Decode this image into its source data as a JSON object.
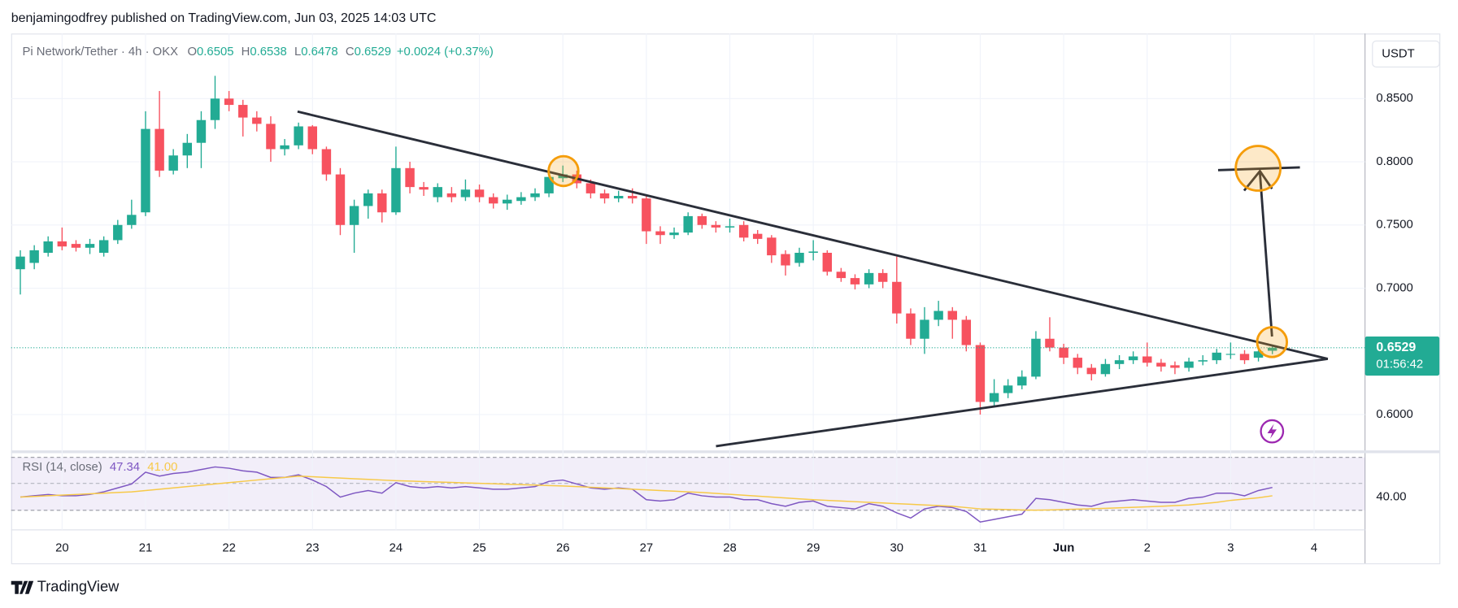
{
  "header": {
    "publisher": "benjamingodfrey published on TradingView.com, Jun 03, 2025 14:03 UTC"
  },
  "footer": {
    "brand": "TradingView"
  },
  "chart_data": [
    {
      "type": "candlestick",
      "title": "Pi Network/Tether · 4h · OKX",
      "legend": [
        {
          "label": "O",
          "value": "0.6505"
        },
        {
          "label": "H",
          "value": "0.6538"
        },
        {
          "label": "L",
          "value": "0.6478"
        },
        {
          "label": "C",
          "value": "0.6529"
        }
      ],
      "change": "+0.0024 (+0.37%)",
      "currency": "USDT",
      "up_color": "#22ab94",
      "down_color": "#f7525f",
      "x": [
        19.5,
        19.667,
        19.833,
        20,
        20.167,
        20.333,
        20.5,
        20.667,
        20.833,
        21,
        21.167,
        21.333,
        21.5,
        21.667,
        21.833,
        22,
        22.167,
        22.333,
        22.5,
        22.667,
        22.833,
        23,
        23.167,
        23.333,
        23.5,
        23.667,
        23.833,
        24,
        24.167,
        24.333,
        24.5,
        24.667,
        24.833,
        25,
        25.167,
        25.333,
        25.5,
        25.667,
        25.833,
        26,
        26.167,
        26.333,
        26.5,
        26.667,
        26.833,
        27,
        27.167,
        27.333,
        27.5,
        27.667,
        27.833,
        28,
        28.167,
        28.333,
        28.5,
        28.667,
        28.833,
        29,
        29.167,
        29.333,
        29.5,
        29.667,
        29.833,
        30,
        30.167,
        30.333,
        30.5,
        30.667,
        30.833,
        31,
        31.167,
        31.333,
        31.5,
        31.667,
        31.833,
        32,
        32.167,
        32.333,
        32.5,
        32.667,
        32.833,
        33,
        33.167,
        33.333,
        33.5,
        33.667,
        33.833,
        34,
        34.167,
        34.333,
        34.5
      ],
      "open": [
        0.715,
        0.72,
        0.728,
        0.737,
        0.735,
        0.732,
        0.728,
        0.738,
        0.75,
        0.76,
        0.826,
        0.793,
        0.805,
        0.815,
        0.833,
        0.85,
        0.845,
        0.835,
        0.83,
        0.81,
        0.813,
        0.828,
        0.81,
        0.79,
        0.75,
        0.765,
        0.775,
        0.76,
        0.795,
        0.78,
        0.772,
        0.775,
        0.772,
        0.778,
        0.772,
        0.767,
        0.769,
        0.772,
        0.775,
        0.787,
        0.79,
        0.783,
        0.775,
        0.771,
        0.773,
        0.771,
        0.745,
        0.742,
        0.744,
        0.757,
        0.75,
        0.748,
        0.75,
        0.743,
        0.74,
        0.727,
        0.72,
        0.728,
        0.728,
        0.713,
        0.708,
        0.703,
        0.712,
        0.705,
        0.68,
        0.66,
        0.675,
        0.682,
        0.675,
        0.655,
        0.61,
        0.617,
        0.623,
        0.63,
        0.66,
        0.653,
        0.645,
        0.637,
        0.632,
        0.64,
        0.643,
        0.646,
        0.641,
        0.639,
        0.637,
        0.642,
        0.643,
        0.648,
        0.648,
        0.645,
        0.6505
      ],
      "high": [
        0.73,
        0.734,
        0.741,
        0.748,
        0.738,
        0.739,
        0.741,
        0.754,
        0.77,
        0.84,
        0.856,
        0.81,
        0.822,
        0.84,
        0.868,
        0.856,
        0.849,
        0.84,
        0.836,
        0.818,
        0.831,
        0.829,
        0.812,
        0.795,
        0.77,
        0.778,
        0.778,
        0.812,
        0.8,
        0.784,
        0.783,
        0.78,
        0.786,
        0.782,
        0.775,
        0.774,
        0.776,
        0.779,
        0.792,
        0.797,
        0.793,
        0.786,
        0.778,
        0.777,
        0.779,
        0.774,
        0.749,
        0.748,
        0.76,
        0.759,
        0.753,
        0.755,
        0.753,
        0.746,
        0.742,
        0.73,
        0.732,
        0.738,
        0.73,
        0.716,
        0.711,
        0.715,
        0.715,
        0.725,
        0.684,
        0.685,
        0.69,
        0.685,
        0.678,
        0.657,
        0.628,
        0.628,
        0.635,
        0.666,
        0.677,
        0.656,
        0.648,
        0.64,
        0.644,
        0.647,
        0.65,
        0.657,
        0.644,
        0.642,
        0.645,
        0.647,
        0.652,
        0.657,
        0.651,
        0.653,
        0.6538
      ],
      "low": [
        0.695,
        0.715,
        0.725,
        0.73,
        0.729,
        0.727,
        0.725,
        0.735,
        0.747,
        0.757,
        0.788,
        0.79,
        0.795,
        0.795,
        0.826,
        0.84,
        0.82,
        0.824,
        0.8,
        0.805,
        0.81,
        0.806,
        0.785,
        0.742,
        0.728,
        0.755,
        0.752,
        0.758,
        0.775,
        0.773,
        0.768,
        0.768,
        0.769,
        0.768,
        0.763,
        0.762,
        0.766,
        0.769,
        0.772,
        0.784,
        0.779,
        0.771,
        0.767,
        0.768,
        0.767,
        0.735,
        0.735,
        0.739,
        0.742,
        0.747,
        0.744,
        0.744,
        0.737,
        0.735,
        0.72,
        0.71,
        0.717,
        0.722,
        0.71,
        0.705,
        0.699,
        0.7,
        0.7,
        0.672,
        0.655,
        0.648,
        0.67,
        0.66,
        0.65,
        0.6,
        0.607,
        0.613,
        0.62,
        0.628,
        0.65,
        0.64,
        0.632,
        0.627,
        0.63,
        0.636,
        0.64,
        0.638,
        0.634,
        0.632,
        0.634,
        0.639,
        0.64,
        0.644,
        0.64,
        0.642,
        0.6478
      ],
      "close": [
        0.725,
        0.73,
        0.737,
        0.733,
        0.732,
        0.735,
        0.738,
        0.75,
        0.758,
        0.826,
        0.793,
        0.805,
        0.815,
        0.833,
        0.85,
        0.845,
        0.835,
        0.83,
        0.81,
        0.813,
        0.828,
        0.81,
        0.79,
        0.75,
        0.765,
        0.775,
        0.76,
        0.795,
        0.78,
        0.778,
        0.78,
        0.772,
        0.778,
        0.772,
        0.767,
        0.77,
        0.772,
        0.775,
        0.788,
        0.79,
        0.783,
        0.775,
        0.771,
        0.773,
        0.771,
        0.745,
        0.742,
        0.744,
        0.757,
        0.75,
        0.748,
        0.749,
        0.74,
        0.739,
        0.726,
        0.718,
        0.728,
        0.729,
        0.713,
        0.708,
        0.703,
        0.712,
        0.705,
        0.68,
        0.66,
        0.675,
        0.682,
        0.675,
        0.655,
        0.61,
        0.617,
        0.623,
        0.63,
        0.66,
        0.653,
        0.645,
        0.637,
        0.632,
        0.64,
        0.643,
        0.646,
        0.641,
        0.638,
        0.637,
        0.642,
        0.643,
        0.649,
        0.648,
        0.643,
        0.65,
        0.6529
      ],
      "xlim": [
        19.39,
        35.61
      ],
      "ylim": [
        0.5735,
        0.9
      ],
      "yticks": [
        {
          "value": 0.6,
          "label": "0.6000"
        },
        {
          "value": 0.7,
          "label": "0.7000"
        },
        {
          "value": 0.75,
          "label": "0.7500"
        },
        {
          "value": 0.8,
          "label": "0.8000"
        },
        {
          "value": 0.85,
          "label": "0.8500"
        }
      ],
      "last_price": {
        "value": 0.6529,
        "label": "0.6529"
      },
      "countdown": "01:56:42",
      "grid": true
    },
    {
      "type": "line",
      "title": "RSI (14, close)",
      "series": [
        {
          "color": "#7e57c2",
          "last_label": "47.34",
          "values": [
            40,
            41,
            42,
            41,
            41,
            42,
            44,
            47,
            50,
            59,
            56,
            58,
            59,
            61,
            63,
            62,
            60,
            59,
            55,
            55,
            57,
            53,
            48,
            40,
            43,
            45,
            43,
            51,
            48,
            47,
            48,
            47,
            48,
            47,
            46,
            46,
            47,
            48,
            52,
            53,
            50,
            47,
            46,
            47,
            46,
            38,
            37,
            38,
            43,
            41,
            40,
            40,
            38,
            38,
            35,
            33,
            36,
            37,
            33,
            32,
            31,
            35,
            33,
            28,
            24,
            31,
            33,
            32,
            29,
            21,
            23,
            25,
            27,
            39,
            38,
            36,
            34,
            33,
            36,
            37,
            38,
            37,
            36,
            36,
            39,
            40,
            43,
            43,
            41,
            45,
            47.34
          ]
        },
        {
          "color": "#f7c948",
          "last_label": "41.00",
          "values": [
            40,
            40.5,
            41,
            41.5,
            42,
            42.5,
            43,
            43.5,
            44,
            45,
            46,
            47,
            48,
            49,
            50,
            51,
            52,
            53,
            54,
            55,
            56,
            55.5,
            55,
            54.5,
            54,
            53.5,
            53,
            52.5,
            52.2,
            51.8,
            51.5,
            51.2,
            50.8,
            50.5,
            50.2,
            49.8,
            49.5,
            49.2,
            48.8,
            48.5,
            48,
            47.5,
            47,
            46.5,
            46,
            45.5,
            45,
            44.5,
            44,
            43.5,
            42.8,
            42.1,
            41.4,
            40.7,
            40,
            39.3,
            38.6,
            38,
            37.5,
            37,
            36.5,
            36,
            35.5,
            35,
            34.5,
            34,
            33.5,
            33,
            32,
            31,
            30.7,
            30.5,
            30.2,
            30,
            30.2,
            30.5,
            30.8,
            31.1,
            31.4,
            31.8,
            32.2,
            32.6,
            33,
            33.5,
            34,
            35,
            36,
            37.5,
            38.5,
            39.5,
            41
          ]
        }
      ],
      "ylim": [
        15,
        71
      ],
      "yticks": [
        {
          "value": 40,
          "label": "40.00"
        }
      ],
      "xticks": [
        20,
        21,
        22,
        23,
        24,
        25,
        26,
        27,
        28,
        29,
        30,
        31,
        {
          "value": 32,
          "label": "Jun"
        },
        {
          "value": 33,
          "label": "2"
        },
        {
          "value": 34,
          "label": "3"
        },
        {
          "value": 35,
          "label": "4"
        }
      ]
    }
  ]
}
